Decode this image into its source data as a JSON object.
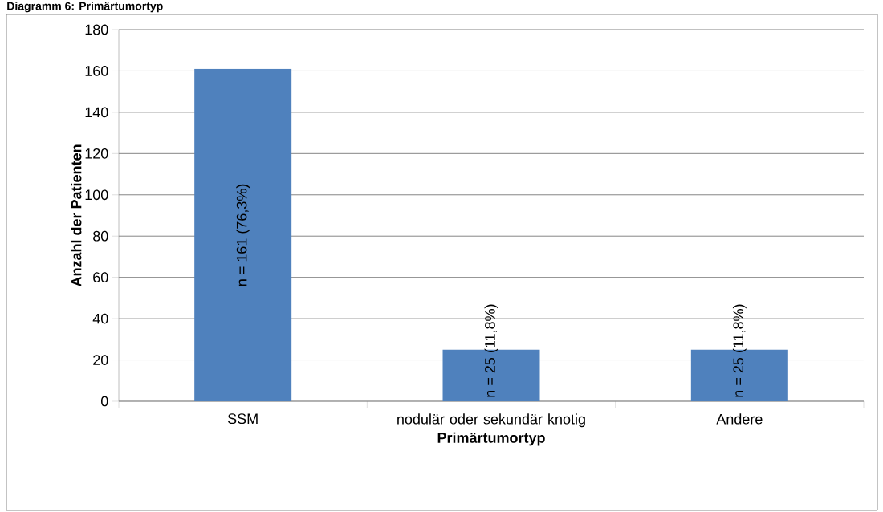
{
  "chart_data": {
    "type": "bar",
    "title": "Diagramm 6: Primärtumortyp",
    "xlabel": "Primärtumortyp",
    "ylabel": "Anzahl der Patienten",
    "categories": [
      "SSM",
      "nodulär oder sekundär knotig",
      "Andere"
    ],
    "values": [
      161,
      25,
      25
    ],
    "value_labels": [
      "n = 161 (76,3%)",
      "n = 25 (11,8%)",
      "n = 25 (11,8%)"
    ],
    "color": "#4f81bd",
    "ylim": [
      0,
      180
    ],
    "yticks": [
      0,
      20,
      40,
      60,
      80,
      100,
      120,
      140,
      160,
      180
    ],
    "grid": "y"
  }
}
